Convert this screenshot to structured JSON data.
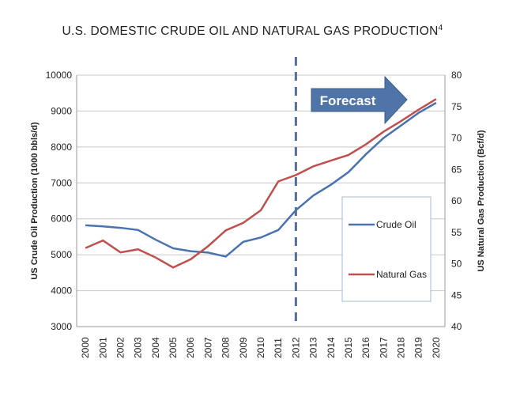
{
  "chart_data": {
    "type": "line",
    "title": "U.S. DOMESTIC CRUDE OIL AND NATURAL GAS PRODUCTION",
    "title_superscript": "4",
    "x": [
      "2000",
      "2001",
      "2002",
      "2003",
      "2004",
      "2005",
      "2006",
      "2007",
      "2008",
      "2009",
      "2010",
      "2011",
      "2012",
      "2013",
      "2014",
      "2015",
      "2016",
      "2017",
      "2018",
      "2019",
      "2020"
    ],
    "ylabel": "US Crude Oil Production (1000 bbls/d)",
    "y2label": "US Natural Gas Production (Bcf/d)",
    "ylim": [
      3000,
      10000
    ],
    "y2lim": [
      40,
      80
    ],
    "yticks": [
      3000,
      4000,
      5000,
      6000,
      7000,
      8000,
      9000,
      10000
    ],
    "y2ticks": [
      40,
      45,
      50,
      55,
      60,
      65,
      70,
      75,
      80
    ],
    "grid": true,
    "legend_placement": "right",
    "forecast_label": "Forecast",
    "forecast_start": "2012",
    "series": [
      {
        "name": "Crude Oil",
        "axis": "left",
        "color": "#4a72b0",
        "values": [
          5820,
          5790,
          5750,
          5690,
          5420,
          5180,
          5100,
          5060,
          4950,
          5360,
          5480,
          5690,
          6240,
          6650,
          6950,
          7300,
          7800,
          8250,
          8600,
          8950,
          9230
        ]
      },
      {
        "name": "Natural Gas",
        "axis": "right",
        "color": "#c0504d",
        "values": [
          52.5,
          53.7,
          51.8,
          52.3,
          51.0,
          49.4,
          50.7,
          52.8,
          55.3,
          56.5,
          58.5,
          63.1,
          64.1,
          65.5,
          66.4,
          67.3,
          69.0,
          71.0,
          72.7,
          74.5,
          76.2
        ]
      }
    ],
    "colors": {
      "forecast_arrow": "#4f74a8",
      "dashed_line": "#4f6fa0"
    }
  }
}
